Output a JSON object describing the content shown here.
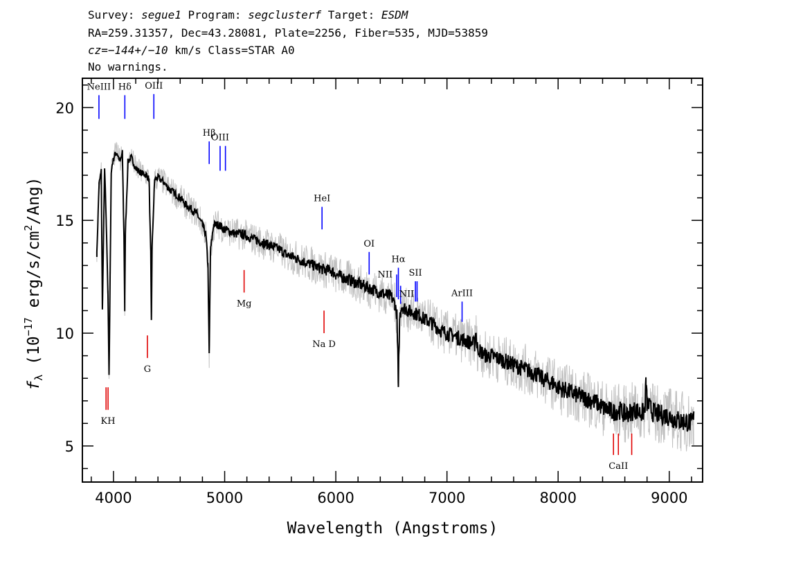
{
  "header": {
    "line1": {
      "survey_label": "Survey: ",
      "survey": "segue1",
      "program_label": " Program: ",
      "program": "segclusterf",
      "target_label": " Target: ",
      "target": "ESDM"
    },
    "line2": "RA=259.31357, Dec=43.28081, Plate=2256, Fiber=535, MJD=53859",
    "line3": {
      "cz": "cz=−144+/−10",
      "rest": " km/s Class=STAR A0"
    },
    "line4": "No warnings."
  },
  "chart_data": {
    "type": "line",
    "title": "",
    "xlabel": "Wavelength (Angstroms)",
    "ylabel_parts": {
      "f": "f",
      "sub": "λ",
      "pre": " (10",
      "exp": "−17",
      "mid": " erg/s/cm",
      "exp2": "2",
      "post": "/Ang)"
    },
    "xlim": [
      3720,
      9300
    ],
    "ylim": [
      3.4,
      21.3
    ],
    "xticks": [
      4000,
      5000,
      6000,
      7000,
      8000,
      9000
    ],
    "yticks": [
      5,
      10,
      15,
      20
    ],
    "colors": {
      "flux": "#000000",
      "error": "#c0c0c0",
      "emission": "#0000ff",
      "absorption": "#e00000"
    },
    "series": [
      {
        "style": "flux",
        "x": [
          3850,
          3870,
          3890,
          3900,
          3920,
          3935,
          3950,
          3960,
          3970,
          3980,
          3990,
          4010,
          4030,
          4060,
          4080,
          4095,
          4101,
          4107,
          4130,
          4160,
          4200,
          4250,
          4300,
          4320,
          4335,
          4341,
          4347,
          4370,
          4400,
          4450,
          4500,
          4550,
          4600,
          4650,
          4700,
          4750,
          4780,
          4800,
          4830,
          4850,
          4861,
          4872,
          4900,
          4950,
          5000,
          5050,
          5100,
          5150,
          5200,
          5250,
          5300,
          5350,
          5400,
          5450,
          5500,
          5550,
          5600,
          5650,
          5700,
          5750,
          5800,
          5850,
          5900,
          5950,
          6000,
          6050,
          6100,
          6150,
          6200,
          6250,
          6300,
          6350,
          6400,
          6450,
          6500,
          6530,
          6550,
          6560,
          6563,
          6566,
          6575,
          6590,
          6620,
          6650,
          6700,
          6750,
          6800,
          6850,
          6900,
          6950,
          7000,
          7050,
          7100,
          7150,
          7200,
          7250,
          7260,
          7270,
          7300,
          7350,
          7400,
          7450,
          7500,
          7550,
          7600,
          7650,
          7700,
          7750,
          7800,
          7850,
          7900,
          7950,
          8000,
          8050,
          8100,
          8150,
          8200,
          8250,
          8300,
          8350,
          8400,
          8450,
          8500,
          8550,
          8600,
          8650,
          8700,
          8750,
          8780,
          8790,
          8800,
          8850,
          8900,
          8950,
          9000,
          9050,
          9100,
          9150,
          9200,
          9220
        ],
        "y": [
          13.5,
          16.6,
          17.2,
          11.0,
          17.4,
          14.8,
          11.8,
          8.2,
          12.6,
          17.2,
          17.5,
          17.9,
          18.0,
          17.6,
          18.0,
          14.0,
          11.0,
          14.5,
          17.6,
          17.8,
          17.3,
          17.1,
          17.0,
          16.8,
          13.5,
          10.5,
          13.8,
          16.8,
          16.9,
          16.7,
          16.4,
          16.2,
          16.0,
          15.7,
          15.5,
          15.3,
          15.0,
          14.8,
          14.4,
          13.0,
          9.0,
          13.6,
          14.8,
          14.8,
          14.6,
          14.5,
          14.4,
          14.4,
          14.3,
          14.2,
          14.1,
          14.0,
          13.9,
          13.8,
          13.7,
          13.5,
          13.4,
          13.3,
          13.2,
          13.1,
          13.0,
          12.9,
          12.8,
          12.8,
          12.6,
          12.5,
          12.4,
          12.3,
          12.2,
          12.1,
          12.0,
          11.9,
          11.8,
          11.7,
          11.6,
          11.3,
          10.8,
          8.6,
          7.4,
          8.8,
          10.7,
          11.2,
          11.1,
          11.0,
          10.9,
          10.8,
          10.6,
          10.5,
          10.3,
          10.1,
          10.0,
          9.9,
          9.8,
          9.7,
          9.6,
          9.5,
          10.1,
          9.4,
          9.2,
          9.0,
          9.0,
          8.9,
          8.8,
          8.7,
          8.6,
          8.5,
          8.4,
          8.3,
          8.2,
          8.0,
          7.9,
          7.8,
          7.6,
          7.5,
          7.4,
          7.3,
          7.2,
          7.1,
          7.0,
          6.9,
          6.7,
          6.6,
          6.5,
          6.6,
          6.4,
          6.5,
          6.6,
          6.4,
          6.6,
          7.8,
          6.9,
          6.5,
          6.4,
          6.4,
          6.3,
          6.2,
          6.1,
          6.1,
          6.0,
          6.2
        ]
      }
    ],
    "line_markers": [
      {
        "label": "NeIII",
        "x": 3869,
        "kind": "emission",
        "y_top": 20.55,
        "y_bot": 19.5,
        "label_pos": "above"
      },
      {
        "label": "Hδ",
        "x": 4102,
        "kind": "emission",
        "y_top": 20.55,
        "y_bot": 19.5,
        "label_pos": "above"
      },
      {
        "label": "OIII",
        "x": 4363,
        "kind": "emission",
        "y_top": 20.6,
        "y_bot": 19.5,
        "label_pos": "above"
      },
      {
        "label": "Hβ",
        "x": 4861,
        "kind": "emission",
        "y_top": 18.5,
        "y_bot": 17.5,
        "label_pos": "above"
      },
      {
        "label": "OIII",
        "x": 4959,
        "kind": "emission",
        "y_top": 18.3,
        "y_bot": 17.2,
        "label_pos": "above"
      },
      {
        "label": "",
        "x": 5007,
        "kind": "emission",
        "y_top": 18.3,
        "y_bot": 17.2,
        "label_pos": "none"
      },
      {
        "label": "HeI",
        "x": 5876,
        "kind": "emission",
        "y_top": 15.6,
        "y_bot": 14.6,
        "label_pos": "above"
      },
      {
        "label": "OI",
        "x": 6300,
        "kind": "emission",
        "y_top": 13.6,
        "y_bot": 12.6,
        "label_pos": "above"
      },
      {
        "label": "NII",
        "x": 6548,
        "kind": "emission",
        "y_top": 12.6,
        "y_bot": 11.6,
        "label_pos": "left"
      },
      {
        "label": "Hα",
        "x": 6563,
        "kind": "emission",
        "y_top": 12.9,
        "y_bot": 11.5,
        "label_pos": "above"
      },
      {
        "label": "NII",
        "x": 6583,
        "kind": "emission",
        "y_top": 12.1,
        "y_bot": 11.3,
        "label_pos": "right"
      },
      {
        "label": "SII",
        "x": 6716,
        "kind": "emission",
        "y_top": 12.3,
        "y_bot": 11.4,
        "label_pos": "above"
      },
      {
        "label": "",
        "x": 6731,
        "kind": "emission",
        "y_top": 12.3,
        "y_bot": 11.4,
        "label_pos": "none"
      },
      {
        "label": "ArIII",
        "x": 7136,
        "kind": "emission",
        "y_top": 11.4,
        "y_bot": 10.5,
        "label_pos": "above"
      },
      {
        "label": "KH",
        "x": 3951,
        "kind": "absorption",
        "y_top": 7.6,
        "y_bot": 6.6,
        "label_pos": "below"
      },
      {
        "label": "",
        "x": 3933,
        "kind": "absorption",
        "y_top": 7.6,
        "y_bot": 6.6,
        "label_pos": "none"
      },
      {
        "label": "G",
        "x": 4305,
        "kind": "absorption",
        "y_top": 9.9,
        "y_bot": 8.9,
        "label_pos": "below"
      },
      {
        "label": "Mg",
        "x": 5175,
        "kind": "absorption",
        "y_top": 12.8,
        "y_bot": 11.8,
        "label_pos": "below"
      },
      {
        "label": "Na D",
        "x": 5894,
        "kind": "absorption",
        "y_top": 11.0,
        "y_bot": 10.0,
        "label_pos": "below"
      },
      {
        "label": "CaII",
        "x": 8542,
        "kind": "absorption",
        "y_top": 5.55,
        "y_bot": 4.6,
        "label_pos": "below"
      },
      {
        "label": "",
        "x": 8498,
        "kind": "absorption",
        "y_top": 5.55,
        "y_bot": 4.6,
        "label_pos": "none"
      },
      {
        "label": "",
        "x": 8662,
        "kind": "absorption",
        "y_top": 5.55,
        "y_bot": 4.6,
        "label_pos": "none"
      }
    ]
  }
}
